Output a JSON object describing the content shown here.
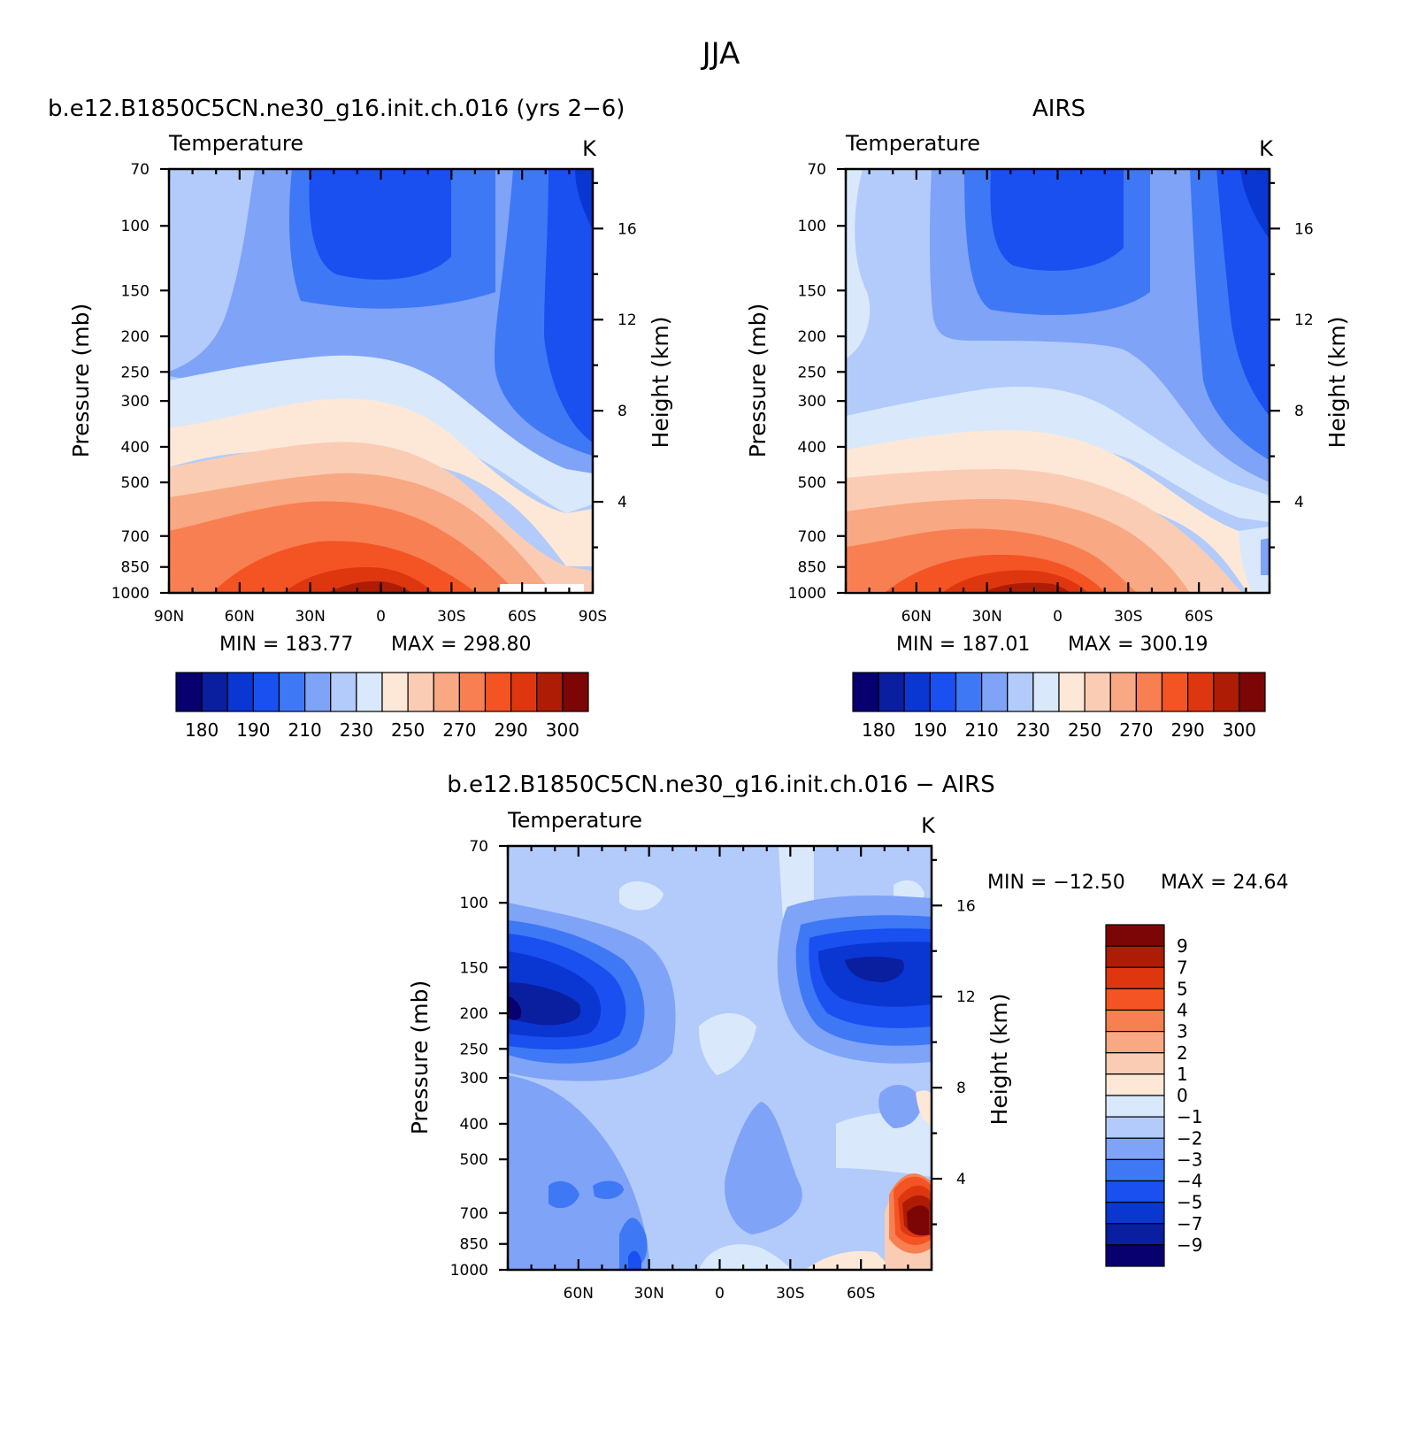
{
  "page_title": "JJA",
  "colors": {
    "temp_scale": [
      "#08006e",
      "#0a1ea0",
      "#0a36d2",
      "#1a4ff0",
      "#3f78f5",
      "#7ea3f7",
      "#b2cbfa",
      "#d9e9fb",
      "#fde8d8",
      "#fbccb4",
      "#f8a882",
      "#f77f52",
      "#f45423",
      "#de3710",
      "#ae1c06",
      "#7c0605"
    ],
    "diff_scale": [
      "#7c0605",
      "#ae1c06",
      "#de3710",
      "#f45423",
      "#f77f52",
      "#f8a882",
      "#fbccb4",
      "#fde8d8",
      "#d9e9fb",
      "#b2cbfa",
      "#7ea3f7",
      "#3f78f5",
      "#1a4ff0",
      "#0a36d2",
      "#0a1ea0",
      "#08006e"
    ]
  },
  "chart_data": [
    {
      "type": "contour",
      "panel_title": "b.e12.B1850C5CN.ne30_g16.init.ch.016 (yrs 2−6)",
      "variable": "Temperature",
      "units": "K",
      "ylabel": "Pressure (mb)",
      "ylabel_right": "Height (km)",
      "x_ticks": [
        "90N",
        "60N",
        "30N",
        "0",
        "30S",
        "60S",
        "90S"
      ],
      "y_ticks": [
        "70",
        "100",
        "150",
        "200",
        "250",
        "300",
        "400",
        "500",
        "700",
        "850",
        "1000"
      ],
      "y_ticks_right": [
        "16",
        "12",
        "8",
        "4"
      ],
      "min_label": "MIN = 183.77",
      "max_label": "MAX = 298.80",
      "min": 183.77,
      "max": 298.8,
      "colorbar_labels": [
        "180",
        "190",
        "210",
        "230",
        "250",
        "270",
        "290",
        "300"
      ],
      "levels": [
        175,
        180,
        185,
        190,
        200,
        210,
        220,
        230,
        240,
        250,
        260,
        270,
        280,
        290,
        295,
        300,
        305
      ]
    },
    {
      "type": "contour",
      "panel_title": "AIRS",
      "variable": "Temperature",
      "units": "K",
      "ylabel": "Pressure (mb)",
      "ylabel_right": "Height (km)",
      "x_ticks": [
        "60N",
        "30N",
        "0",
        "30S",
        "60S"
      ],
      "y_ticks": [
        "70",
        "100",
        "150",
        "200",
        "250",
        "300",
        "400",
        "500",
        "700",
        "850",
        "1000"
      ],
      "y_ticks_right": [
        "16",
        "12",
        "8",
        "4"
      ],
      "min_label": "MIN = 187.01",
      "max_label": "MAX = 300.19",
      "min": 187.01,
      "max": 300.19,
      "colorbar_labels": [
        "180",
        "190",
        "210",
        "230",
        "250",
        "270",
        "290",
        "300"
      ],
      "levels": [
        175,
        180,
        185,
        190,
        200,
        210,
        220,
        230,
        240,
        250,
        260,
        270,
        280,
        290,
        295,
        300,
        305
      ]
    },
    {
      "type": "contour",
      "panel_title": "b.e12.B1850C5CN.ne30_g16.init.ch.016 − AIRS",
      "variable": "Temperature",
      "units": "K",
      "ylabel": "Pressure (mb)",
      "ylabel_right": "Height (km)",
      "x_ticks": [
        "60N",
        "30N",
        "0",
        "30S",
        "60S"
      ],
      "y_ticks": [
        "70",
        "100",
        "150",
        "200",
        "250",
        "300",
        "400",
        "500",
        "700",
        "850",
        "1000"
      ],
      "y_ticks_right": [
        "16",
        "12",
        "8",
        "4"
      ],
      "min_label": "MIN = −12.50",
      "max_label": "MAX =  24.64",
      "min": -12.5,
      "max": 24.64,
      "colorbar_labels": [
        "9",
        "7",
        "5",
        "4",
        "3",
        "2",
        "1",
        "0",
        "−1",
        "−2",
        "−3",
        "−4",
        "−5",
        "−7",
        "−9"
      ]
    }
  ]
}
